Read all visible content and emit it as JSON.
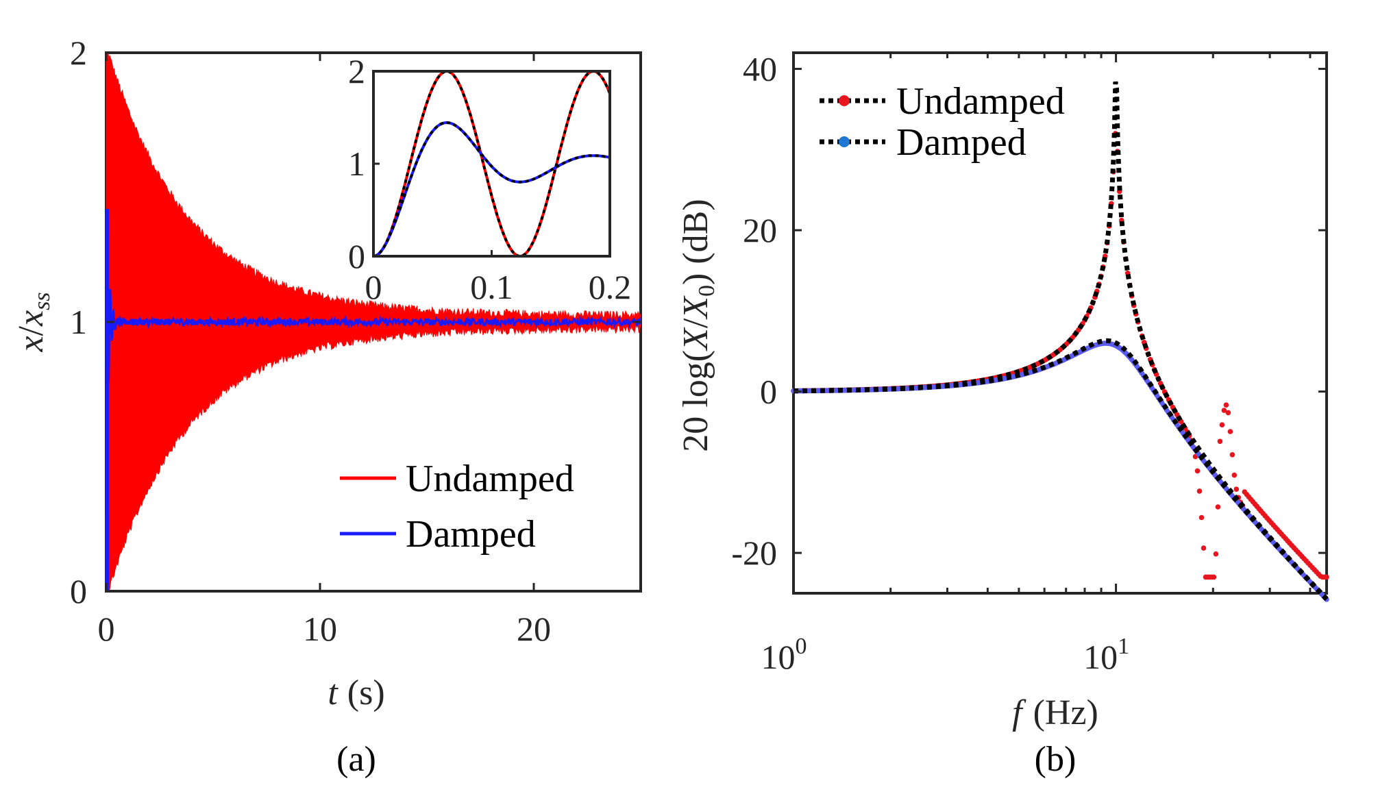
{
  "chart_data": [
    {
      "id": "a",
      "type": "line",
      "caption": "(a)",
      "xlabel_var": "t",
      "xlabel_unit": "(s)",
      "ylabel_var": "x",
      "ylabel_sep": "/",
      "ylabel_den": "x",
      "ylabel_sub": "ss",
      "xlim": [
        0,
        25
      ],
      "ylim": [
        0,
        2
      ],
      "xticks": [
        0,
        10,
        20
      ],
      "xtick_labels": [
        "0",
        "10",
        "20"
      ],
      "yticks": [
        0,
        1,
        2
      ],
      "ytick_labels": [
        "0",
        "1",
        "2"
      ],
      "legend_position": "bottom-right",
      "series": [
        {
          "name": "Undamped",
          "color": "#ff0000",
          "initial_deviation": 1.0,
          "decay_time_s": 3.8,
          "noise_floor": 0.025
        },
        {
          "name": "Damped",
          "color": "#1a1aff",
          "initial_peak": 1.42,
          "settling_time_s": 0.3,
          "noise_floor": 0.012
        }
      ],
      "inset": {
        "xlim": [
          0,
          0.2
        ],
        "ylim": [
          0,
          2
        ],
        "xticks": [
          0,
          0.1,
          0.2
        ],
        "xtick_labels": [
          "0",
          "0.1",
          "0.2"
        ],
        "yticks": [
          0,
          1,
          2
        ],
        "ytick_labels": [
          "0",
          "1",
          "2"
        ],
        "undamped_peak_time": 0.062,
        "damped_peak_time": 0.062,
        "damped_peak": 1.42,
        "damped_trough": 0.82,
        "damped_trough_time": 0.13,
        "fit_color": "#000000"
      }
    },
    {
      "id": "b",
      "type": "line",
      "caption": "(b)",
      "xscale": "log",
      "xlabel_var": "f",
      "xlabel_unit": "(Hz)",
      "ylabel": "20 log(X/X₀) (dB)",
      "ylabel_prefix": "20 log(",
      "ylabel_X": "X",
      "ylabel_slash": "/",
      "ylabel_X0": "X",
      "ylabel_X0_sub": "0",
      "ylabel_suffix": ") (dB)",
      "xlim": [
        1,
        45
      ],
      "ylim": [
        -25,
        42
      ],
      "xtick_labels": [
        {
          "base": "10",
          "exp": "0"
        },
        {
          "base": "10",
          "exp": "1"
        }
      ],
      "xticks": [
        1,
        10
      ],
      "yticks": [
        -20,
        0,
        20,
        40
      ],
      "ytick_labels": [
        "-20",
        "0",
        "20",
        "40"
      ],
      "legend_position": "top-left",
      "natural_frequency_hz": 10,
      "undamped_zeta": 0.005,
      "damped_zeta": 0.25,
      "series": [
        {
          "name": "Undamped",
          "marker_color": "#e8141e",
          "fit_color": "#000000",
          "peak_db": 40,
          "notch_f": 19.5,
          "notch_db": -21,
          "bump_f": 22,
          "bump_db": -2
        },
        {
          "name": "Damped",
          "marker_color": "#1f77d4",
          "fit_color": "#000000",
          "peak_db": 6,
          "end_db": -23
        }
      ]
    }
  ]
}
